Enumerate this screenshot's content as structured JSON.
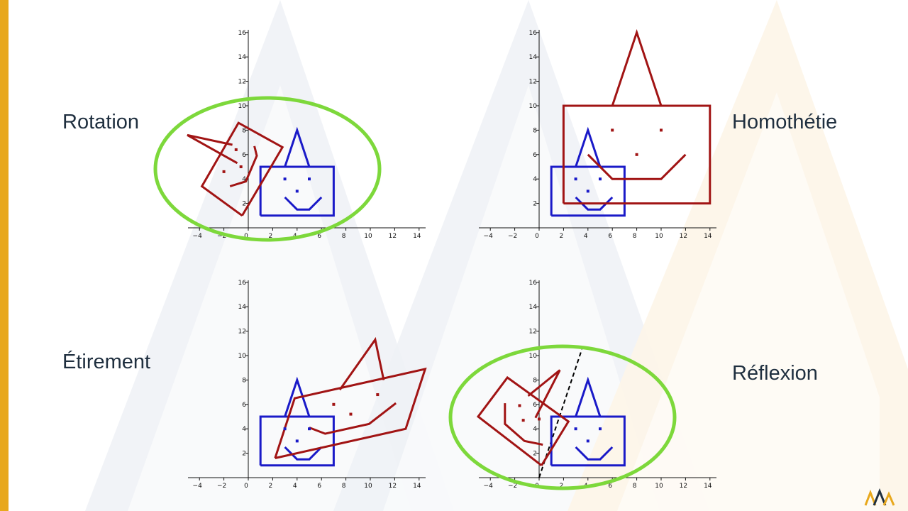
{
  "labels": {
    "rotation": "Rotation",
    "homothetie": "Homothétie",
    "etirement": "Étirement",
    "reflexion": "Réflexion"
  },
  "colors": {
    "original": "#1a1ac8",
    "transformed": "#a11414",
    "highlight": "#7dd83b",
    "accent_bar": "#e8a81c"
  },
  "logo": {
    "icon": "triple-peak-logo-icon"
  },
  "chart_data": [
    {
      "type": "line",
      "panel": "rotation",
      "xlim": [
        -5,
        14.5
      ],
      "ylim": [
        0,
        16
      ],
      "xticks": [
        -4,
        -2,
        0,
        2,
        4,
        6,
        8,
        10,
        12,
        14
      ],
      "yticks": [
        2,
        4,
        6,
        8,
        10,
        12,
        14,
        16
      ],
      "highlighted": true,
      "series": [
        {
          "role": "original",
          "points": [
            [
              1,
              1
            ],
            [
              7,
              1
            ],
            [
              7,
              5
            ],
            [
              1,
              5
            ],
            [
              1,
              1
            ]
          ]
        },
        {
          "role": "original",
          "points": [
            [
              3,
              5
            ],
            [
              4,
              8
            ],
            [
              5,
              5
            ]
          ]
        },
        {
          "role": "original",
          "points": [
            [
              3,
              2.5
            ],
            [
              4,
              1.5
            ],
            [
              5,
              1.5
            ],
            [
              6,
              2.5
            ]
          ]
        },
        {
          "role": "transformed",
          "points": [
            [
              -0.5,
              1
            ],
            [
              -3.8,
              3.4
            ],
            [
              -0.8,
              8.6
            ],
            [
              2.8,
              6.6
            ],
            [
              -0.5,
              1
            ]
          ]
        },
        {
          "role": "transformed",
          "points": [
            [
              -1.3,
              6.8
            ],
            [
              -5,
              7.6
            ],
            [
              -0.9,
              5.3
            ]
          ]
        },
        {
          "role": "transformed",
          "points": [
            [
              -1.5,
              3.4
            ],
            [
              -0.2,
              3.8
            ],
            [
              0.7,
              5.9
            ],
            [
              0.5,
              6.7
            ]
          ]
        }
      ],
      "dots": [
        {
          "role": "original",
          "points": [
            [
              3,
              4
            ],
            [
              5,
              4
            ],
            [
              4,
              3
            ]
          ]
        },
        {
          "role": "transformed",
          "points": [
            [
              -2,
              4.6
            ],
            [
              -0.6,
              5
            ],
            [
              -1,
              6.4
            ]
          ]
        }
      ]
    },
    {
      "type": "line",
      "panel": "homothetie",
      "xlim": [
        -5,
        14.5
      ],
      "ylim": [
        0,
        16
      ],
      "xticks": [
        -4,
        -2,
        0,
        2,
        4,
        6,
        8,
        10,
        12,
        14
      ],
      "yticks": [
        2,
        4,
        6,
        8,
        10,
        12,
        14,
        16
      ],
      "highlighted": false,
      "series": [
        {
          "role": "original",
          "points": [
            [
              1,
              1
            ],
            [
              7,
              1
            ],
            [
              7,
              5
            ],
            [
              1,
              5
            ],
            [
              1,
              1
            ]
          ]
        },
        {
          "role": "original",
          "points": [
            [
              3,
              5
            ],
            [
              4,
              8
            ],
            [
              5,
              5
            ]
          ]
        },
        {
          "role": "original",
          "points": [
            [
              3,
              2.5
            ],
            [
              4,
              1.5
            ],
            [
              5,
              1.5
            ],
            [
              6,
              2.5
            ]
          ]
        },
        {
          "role": "transformed",
          "points": [
            [
              2,
              2
            ],
            [
              14,
              2
            ],
            [
              14,
              10
            ],
            [
              2,
              10
            ],
            [
              2,
              2
            ]
          ]
        },
        {
          "role": "transformed",
          "points": [
            [
              6,
              10
            ],
            [
              8,
              16
            ],
            [
              10,
              10
            ]
          ]
        },
        {
          "role": "transformed",
          "points": [
            [
              4,
              6
            ],
            [
              6,
              4
            ],
            [
              10,
              4
            ],
            [
              12,
              6
            ]
          ]
        }
      ],
      "dots": [
        {
          "role": "original",
          "points": [
            [
              3,
              4
            ],
            [
              5,
              4
            ],
            [
              4,
              3
            ]
          ]
        },
        {
          "role": "transformed",
          "points": [
            [
              6,
              8
            ],
            [
              10,
              8
            ],
            [
              8,
              6
            ]
          ]
        }
      ]
    },
    {
      "type": "line",
      "panel": "etirement",
      "xlim": [
        -5,
        14.5
      ],
      "ylim": [
        0,
        16
      ],
      "xticks": [
        -4,
        -2,
        0,
        2,
        4,
        6,
        8,
        10,
        12,
        14
      ],
      "yticks": [
        2,
        4,
        6,
        8,
        10,
        12,
        14,
        16
      ],
      "highlighted": false,
      "series": [
        {
          "role": "original",
          "points": [
            [
              1,
              1
            ],
            [
              7,
              1
            ],
            [
              7,
              5
            ],
            [
              1,
              5
            ],
            [
              1,
              1
            ]
          ]
        },
        {
          "role": "original",
          "points": [
            [
              3,
              5
            ],
            [
              4,
              8
            ],
            [
              5,
              5
            ]
          ]
        },
        {
          "role": "original",
          "points": [
            [
              3,
              2.5
            ],
            [
              4,
              1.5
            ],
            [
              5,
              1.5
            ],
            [
              6,
              2.5
            ]
          ]
        },
        {
          "role": "transformed",
          "points": [
            [
              2.2,
              1.6
            ],
            [
              12.9,
              4
            ],
            [
              14.5,
              8.9
            ],
            [
              3.8,
              6.5
            ],
            [
              2.2,
              1.6
            ]
          ]
        },
        {
          "role": "transformed",
          "points": [
            [
              7.5,
              7.2
            ],
            [
              10.4,
              11.3
            ],
            [
              11.1,
              8
            ]
          ]
        },
        {
          "role": "transformed",
          "points": [
            [
              5,
              4.1
            ],
            [
              6.3,
              3.6
            ],
            [
              9.9,
              4.4
            ],
            [
              12.1,
              6.1
            ]
          ]
        }
      ],
      "dots": [
        {
          "role": "original",
          "points": [
            [
              3,
              4
            ],
            [
              5,
              4
            ],
            [
              4,
              3
            ]
          ]
        },
        {
          "role": "transformed",
          "points": [
            [
              7,
              6
            ],
            [
              10.6,
              6.8
            ],
            [
              8.4,
              5.2
            ]
          ]
        }
      ]
    },
    {
      "type": "line",
      "panel": "reflexion",
      "xlim": [
        -5,
        14.5
      ],
      "ylim": [
        0,
        16
      ],
      "xticks": [
        -4,
        -2,
        0,
        2,
        4,
        6,
        8,
        10,
        12,
        14
      ],
      "yticks": [
        2,
        4,
        6,
        8,
        10,
        12,
        14,
        16
      ],
      "highlighted": true,
      "series": [
        {
          "role": "original",
          "points": [
            [
              1,
              1
            ],
            [
              7,
              1
            ],
            [
              7,
              5
            ],
            [
              1,
              5
            ],
            [
              1,
              1
            ]
          ]
        },
        {
          "role": "original",
          "points": [
            [
              3,
              5
            ],
            [
              4,
              8
            ],
            [
              5,
              5
            ]
          ]
        },
        {
          "role": "original",
          "points": [
            [
              3,
              2.5
            ],
            [
              4,
              1.5
            ],
            [
              5,
              1.5
            ],
            [
              6,
              2.5
            ]
          ]
        },
        {
          "role": "transformed",
          "points": [
            [
              0.2,
              1
            ],
            [
              -5,
              5
            ],
            [
              -2.6,
              8.2
            ],
            [
              2.4,
              4.6
            ],
            [
              0.2,
              1
            ]
          ]
        },
        {
          "role": "transformed",
          "points": [
            [
              -0.9,
              6.7
            ],
            [
              1.7,
              8.8
            ],
            [
              -0.3,
              4.9
            ]
          ]
        },
        {
          "role": "transformed",
          "points": [
            [
              -2.8,
              6.1
            ],
            [
              -2.8,
              4.4
            ],
            [
              -1.2,
              3
            ],
            [
              0.3,
              2.7
            ]
          ]
        }
      ],
      "dots": [
        {
          "role": "original",
          "points": [
            [
              3,
              4
            ],
            [
              5,
              4
            ],
            [
              4,
              3
            ]
          ]
        },
        {
          "role": "transformed",
          "points": [
            [
              -1.6,
              5.9
            ],
            [
              -1.3,
              4.7
            ],
            [
              0,
              4.8
            ]
          ]
        }
      ],
      "mirror_line": [
        [
          0,
          0
        ],
        [
          3.5,
          10.5
        ]
      ]
    }
  ]
}
